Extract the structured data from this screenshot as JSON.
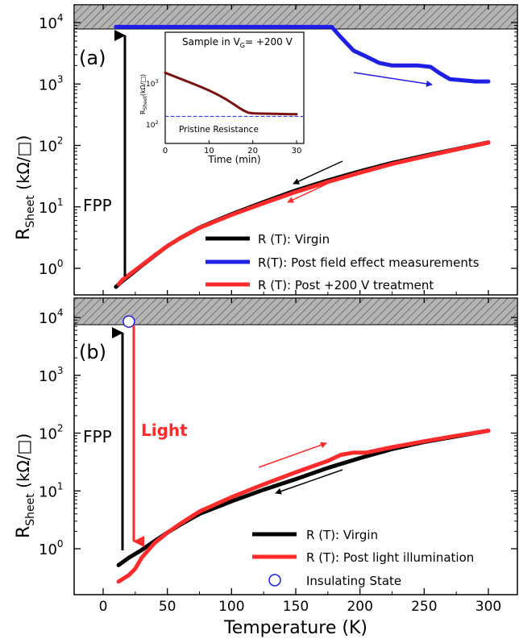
{
  "figure": {
    "xlabel": "Temperature (K)",
    "x_ticks": [
      "0",
      "50",
      "100",
      "150",
      "200",
      "250",
      "300"
    ],
    "ylabel_main": "R",
    "ylabel_sub": "Sheet",
    "ylabel_unit": " (kΩ/□)",
    "y_ticks": [
      {
        "base": "10",
        "exp": "4"
      },
      {
        "base": "10",
        "exp": "3"
      },
      {
        "base": "10",
        "exp": "2"
      },
      {
        "base": "10",
        "exp": "1"
      },
      {
        "base": "10",
        "exp": "0"
      }
    ]
  },
  "panel_a": {
    "label": "(a)",
    "fpp_label": "FPP",
    "legend": [
      {
        "label": "R (T): Virgin",
        "color": "#000000"
      },
      {
        "label": "R(T): Post field effect measurements",
        "color": "#1f1fe6"
      },
      {
        "label": "R (T): Post +200 V treatment",
        "color": "#ff2a2a"
      }
    ],
    "inset": {
      "title_pre": "Sample in V",
      "title_sub": "G",
      "title_post": "= +200 V",
      "xlabel": "Time (min)",
      "x_ticks": [
        "0",
        "10",
        "20",
        "30"
      ],
      "ylabel_main": "R",
      "ylabel_sub": "Sheet",
      "ylabel_unit": "(kΩ/□)",
      "y_ticks": [
        {
          "base": "10",
          "exp": "3"
        },
        {
          "base": "10",
          "exp": "2"
        }
      ],
      "ref_label": "Pristine Resistance"
    }
  },
  "panel_b": {
    "label": "(b)",
    "fpp_label": "FPP",
    "light_label": "Light",
    "legend": [
      {
        "label": "R (T): Virgin",
        "color": "#000000"
      },
      {
        "label": "R (T): Post light illumination",
        "color": "#ff2a2a"
      },
      {
        "label": "Insulating State",
        "color": "#1f1fe6"
      }
    ]
  },
  "chart_data": [
    {
      "type": "line",
      "panel": "a",
      "xlabel": "Temperature (K)",
      "ylabel": "R_Sheet (kΩ/□)",
      "xlim": [
        -25,
        325
      ],
      "ylim": [
        0.3,
        20000
      ],
      "yscale": "log",
      "series": [
        {
          "name": "R (T): Virgin",
          "color": "#000000",
          "x": [
            10,
            15,
            20,
            30,
            40,
            50,
            60,
            75,
            100,
            125,
            150,
            175,
            200,
            225,
            250,
            275,
            300
          ],
          "y": [
            0.5,
            0.62,
            0.75,
            1.1,
            1.6,
            2.3,
            3.1,
            4.6,
            7.6,
            12,
            18.5,
            27,
            38,
            52,
            68,
            87,
            112
          ]
        },
        {
          "name": "R(T): Post field effect measurements",
          "color": "#1f1fe6",
          "x": [
            10,
            50,
            100,
            150,
            178,
            185,
            195,
            205,
            215,
            225,
            235,
            245,
            255,
            262,
            270,
            280,
            290,
            300
          ],
          "y": [
            8500,
            8500,
            8500,
            8500,
            8500,
            5800,
            3500,
            2800,
            2200,
            2000,
            2000,
            2000,
            1900,
            1500,
            1200,
            1150,
            1100,
            1100
          ]
        },
        {
          "name": "R (T): Post +200 V treatment",
          "color": "#ff2a2a",
          "x": [
            12,
            15,
            20,
            30,
            40,
            50,
            60,
            75,
            100,
            125,
            150,
            175,
            200,
            225,
            250,
            275,
            300
          ],
          "y": [
            0.55,
            0.65,
            0.78,
            1.12,
            1.62,
            2.3,
            3.1,
            4.55,
            7.4,
            11.5,
            17.5,
            25.5,
            36,
            50,
            66,
            86,
            111
          ]
        }
      ]
    },
    {
      "type": "line",
      "panel": "a-inset",
      "title": "Sample in VG= +200 V",
      "xlabel": "Time (min)",
      "ylabel": "R_Sheet (kΩ/□)",
      "xlim": [
        0,
        32
      ],
      "ylim": [
        90,
        3000
      ],
      "yscale": "log",
      "series": [
        {
          "name": "",
          "color": "#7a1010",
          "x": [
            0,
            2,
            5,
            8,
            10,
            12,
            14,
            16,
            17,
            18,
            19,
            20,
            22,
            25,
            28,
            30
          ],
          "y": [
            1800,
            1450,
            1050,
            760,
            600,
            460,
            340,
            240,
            200,
            170,
            150,
            145,
            142,
            140,
            138,
            137
          ]
        },
        {
          "name": "Pristine Resistance",
          "color": "#1f1fe6",
          "style": "dashed",
          "x": [
            0,
            32
          ],
          "y": [
            120,
            120
          ]
        }
      ]
    },
    {
      "type": "line",
      "panel": "b",
      "xlabel": "Temperature (K)",
      "ylabel": "R_Sheet (kΩ/□)",
      "xlim": [
        -25,
        325
      ],
      "ylim": [
        0.2,
        20000
      ],
      "yscale": "log",
      "series": [
        {
          "name": "R (T): Virgin",
          "color": "#000000",
          "x": [
            12,
            20,
            30,
            40,
            50,
            60,
            75,
            100,
            125,
            150,
            175,
            200,
            225,
            250,
            275,
            300
          ],
          "y": [
            0.52,
            0.7,
            0.95,
            1.35,
            1.9,
            2.6,
            4.0,
            6.6,
            10.5,
            16,
            25,
            37,
            53,
            70,
            88,
            110
          ]
        },
        {
          "name": "R (T): Post light illumination",
          "color": "#ff2a2a",
          "x": [
            12,
            20,
            25,
            30,
            40,
            50,
            60,
            75,
            100,
            125,
            150,
            175,
            185,
            195,
            205,
            225,
            250,
            275,
            300
          ],
          "y": [
            0.27,
            0.35,
            0.45,
            0.7,
            1.25,
            1.9,
            2.7,
            4.4,
            7.8,
            13,
            21,
            33,
            42,
            46,
            46,
            57,
            72,
            90,
            110
          ]
        },
        {
          "name": "Insulating State",
          "color": "#1f1fe6",
          "marker": "open-circle",
          "x": [
            20
          ],
          "y": [
            8500
          ]
        }
      ]
    }
  ]
}
